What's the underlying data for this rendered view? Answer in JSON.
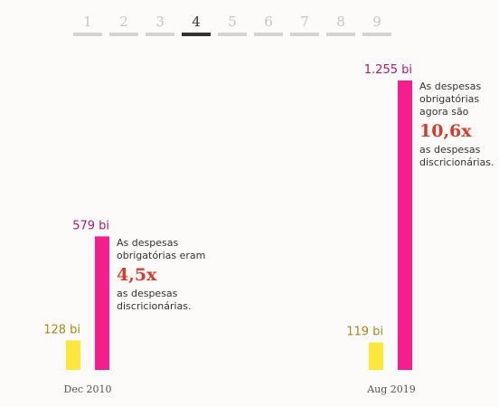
{
  "pager": {
    "pages": [
      "1",
      "2",
      "3",
      "4",
      "5",
      "6",
      "7",
      "8",
      "9"
    ],
    "active_index": 3
  },
  "colors": {
    "obrigatorias": "#f61e8c",
    "discricionarias": "#fde73a",
    "label_obrigatorias": "#b01a66",
    "label_discricionarias": "#a38b1c",
    "highlight": "#d83a2b"
  },
  "chart_data": {
    "type": "bar",
    "categories": [
      "Dec 2010",
      "Aug 2019"
    ],
    "series": [
      {
        "values": [
          128,
          119
        ],
        "labels": [
          "128 bi",
          "119 bi"
        ]
      },
      {
        "values": [
          579,
          1255
        ],
        "labels": [
          "579 bi",
          "1.255 bi"
        ]
      }
    ],
    "ylim": [
      0,
      1255
    ]
  },
  "annotations": [
    {
      "line1": "As despesas obrigatórias eram",
      "highlight": "4,5x",
      "line2": "as despesas discricionárias."
    },
    {
      "line1": "As despesas obrigatórias agora são",
      "highlight": "10,6x",
      "line2": "as despesas discricionárias."
    }
  ]
}
